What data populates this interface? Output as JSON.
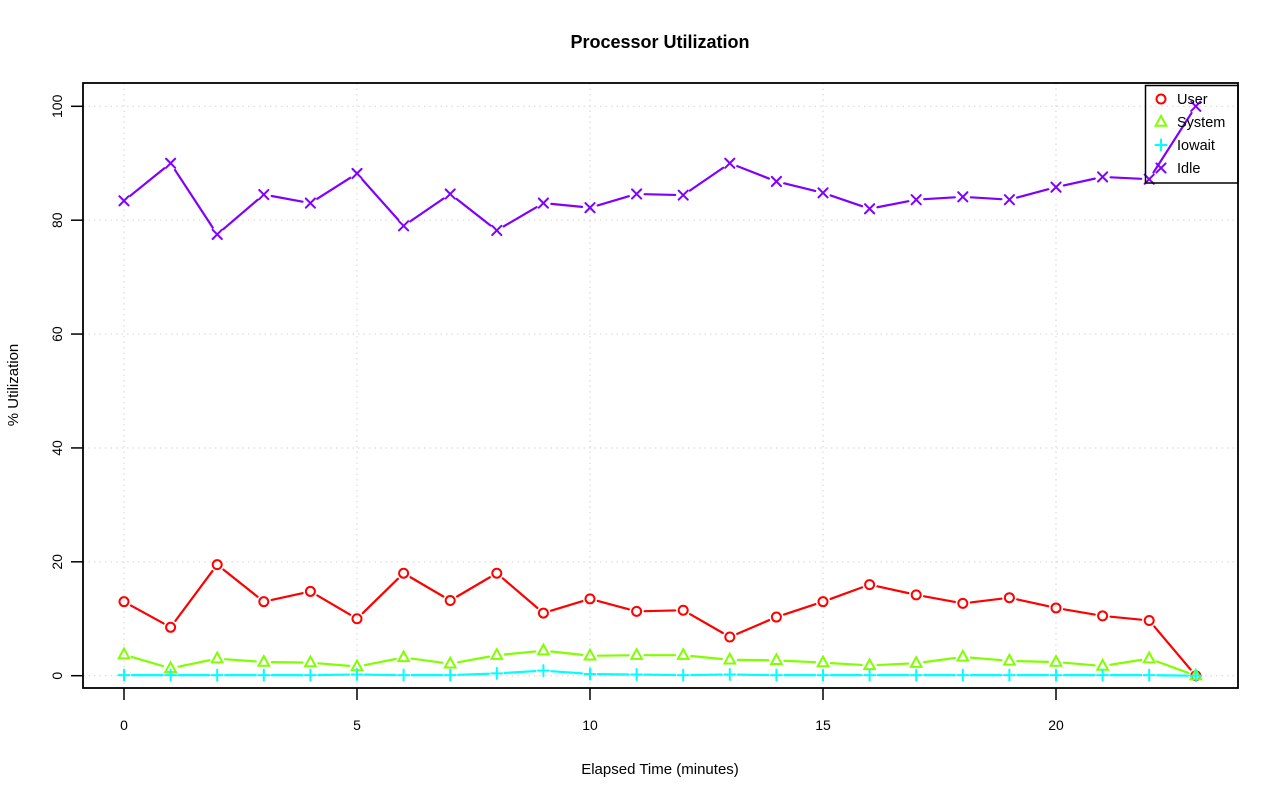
{
  "chart_data": {
    "type": "line",
    "title": "Processor Utilization",
    "xlabel": "Elapsed Time (minutes)",
    "ylabel": "% Utilization",
    "x": [
      0,
      1,
      2,
      3,
      4,
      5,
      6,
      7,
      8,
      9,
      10,
      11,
      12,
      13,
      14,
      15,
      16,
      17,
      18,
      19,
      20,
      21,
      22,
      23
    ],
    "xticks": [
      0,
      5,
      10,
      15,
      20
    ],
    "yticks": [
      0,
      20,
      40,
      60,
      80,
      100
    ],
    "xlim": [
      0,
      23
    ],
    "ylim": [
      0,
      100
    ],
    "grid": true,
    "grid_style": "dotted",
    "grid_color": "#d3d3d3",
    "axis_color": "#000000",
    "background": "#ffffff",
    "legend": {
      "position": "top-right",
      "entries": [
        "User",
        "System",
        "Iowait",
        "Idle"
      ]
    },
    "series": [
      {
        "name": "User",
        "color": "#ff0000",
        "marker": "circle",
        "values": [
          13,
          8.5,
          19.5,
          13,
          14.8,
          10,
          18,
          13.2,
          18,
          11,
          13.5,
          11.3,
          11.5,
          6.8,
          10.3,
          13,
          16,
          14.2,
          12.7,
          13.7,
          11.9,
          10.5,
          9.7,
          0
        ]
      },
      {
        "name": "System",
        "color": "#80ff00",
        "marker": "triangle",
        "values": [
          3.7,
          1.3,
          3.0,
          2.4,
          2.3,
          1.6,
          3.2,
          2.1,
          3.6,
          4.4,
          3.5,
          3.6,
          3.6,
          2.8,
          2.7,
          2.3,
          1.8,
          2.2,
          3.3,
          2.6,
          2.4,
          1.7,
          3.0,
          0
        ]
      },
      {
        "name": "Iowait",
        "color": "#00ffff",
        "marker": "plus",
        "values": [
          0.1,
          0.1,
          0.1,
          0.1,
          0.1,
          0.2,
          0.1,
          0.1,
          0.4,
          0.9,
          0.3,
          0.2,
          0.1,
          0.2,
          0.1,
          0.1,
          0.1,
          0.1,
          0.1,
          0.1,
          0.1,
          0.1,
          0.1,
          0
        ]
      },
      {
        "name": "Idle",
        "color": "#8000ff",
        "marker": "x",
        "values": [
          83.4,
          90,
          77.5,
          84.5,
          83,
          88.2,
          79,
          84.6,
          78.2,
          83,
          82.2,
          84.6,
          84.4,
          90,
          86.8,
          84.8,
          82,
          83.6,
          84.1,
          83.6,
          85.8,
          87.6,
          87.2,
          100
        ]
      }
    ]
  }
}
